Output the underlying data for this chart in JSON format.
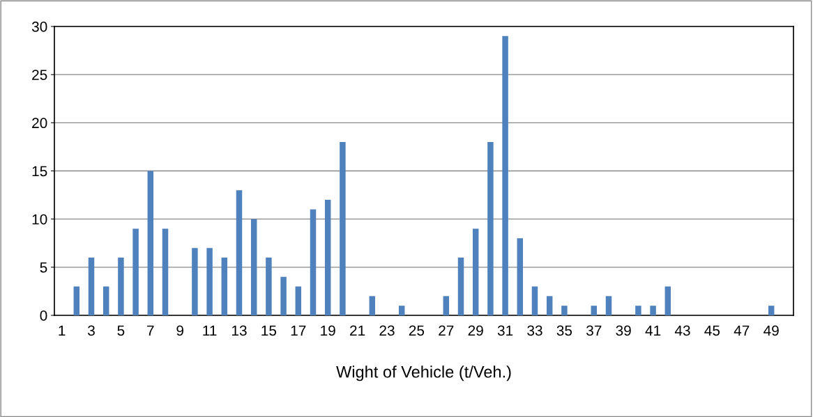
{
  "chart_data": {
    "type": "bar",
    "xlabel": "Wight of Vehicle (t/Veh.)",
    "categories": [
      "1",
      null,
      "3",
      null,
      "5",
      null,
      "7",
      null,
      "9",
      null,
      "11",
      null,
      "13",
      null,
      "15",
      null,
      "17",
      null,
      "19",
      null,
      "21",
      null,
      "23",
      null,
      "25",
      null,
      "27",
      null,
      "29",
      null,
      "31",
      null,
      "33",
      null,
      "35",
      null,
      "37",
      null,
      "39",
      null,
      "41",
      null,
      "43",
      null,
      "45",
      null,
      "47",
      null,
      "49",
      null
    ],
    "values": [
      0,
      3,
      6,
      3,
      6,
      9,
      15,
      9,
      0,
      7,
      7,
      6,
      13,
      10,
      6,
      4,
      3,
      11,
      12,
      18,
      0,
      2,
      0,
      1,
      0,
      0,
      2,
      6,
      9,
      18,
      29,
      8,
      3,
      2,
      1,
      0,
      1,
      2,
      0,
      1,
      1,
      3,
      0,
      0,
      0,
      0,
      0,
      0,
      1,
      0
    ],
    "color": "#4f81bd",
    "ylim": [
      0,
      30
    ],
    "yticks": [
      0,
      5,
      10,
      15,
      20,
      25,
      30
    ],
    "grid": "y",
    "legend": false
  }
}
